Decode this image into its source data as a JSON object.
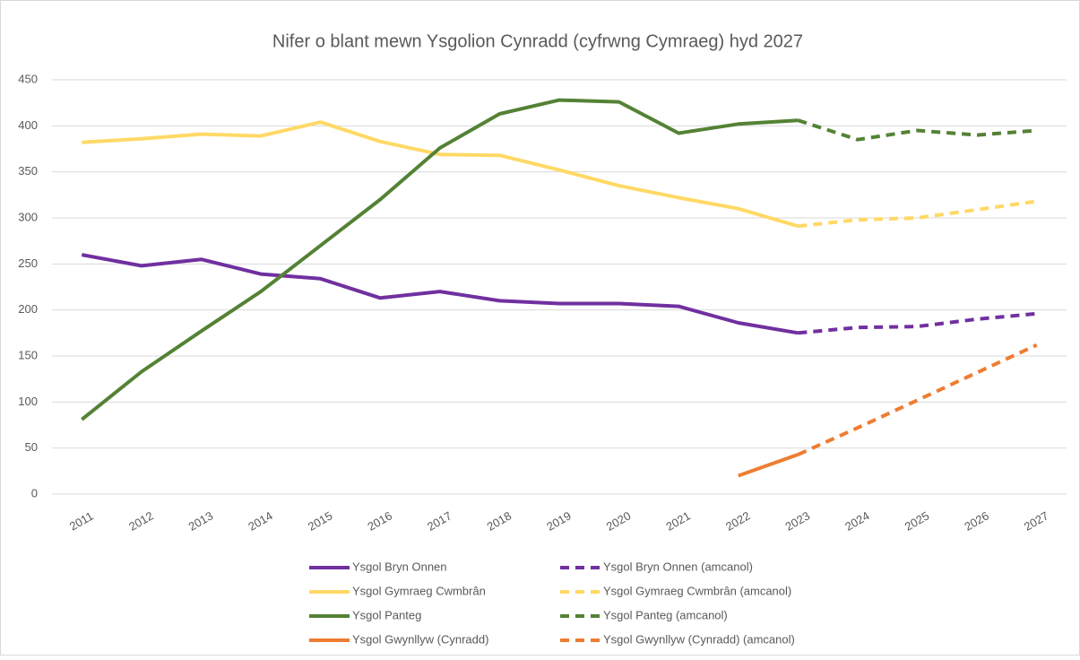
{
  "chart_data": {
    "type": "line",
    "title": "Nifer o blant mewn Ysgolion Cynradd (cyfrwng Cymraeg) hyd 2027",
    "categories": [
      "2011",
      "2012",
      "2013",
      "2014",
      "2015",
      "2016",
      "2017",
      "2018",
      "2019",
      "2020",
      "2021",
      "2022",
      "2023",
      "2024",
      "2025",
      "2026",
      "2027"
    ],
    "series": [
      {
        "name": "Ysgol Bryn Onnen",
        "color": "#7030a0",
        "dashed": false,
        "values": [
          260,
          248,
          255,
          239,
          234,
          213,
          220,
          210,
          207,
          207,
          204,
          186,
          175,
          null,
          null,
          null,
          null
        ]
      },
      {
        "name": "Ysgol Bryn Onnen (amcanol)",
        "color": "#7030a0",
        "dashed": true,
        "values": [
          null,
          null,
          null,
          null,
          null,
          null,
          null,
          null,
          null,
          null,
          null,
          null,
          175,
          181,
          182,
          190,
          196
        ]
      },
      {
        "name": "Ysgol Gymraeg Cwmbrân",
        "color": "#ffd966",
        "dashed": false,
        "values": [
          382,
          386,
          391,
          389,
          404,
          383,
          369,
          368,
          352,
          335,
          322,
          310,
          291,
          null,
          null,
          null,
          null
        ]
      },
      {
        "name": "Ysgol Gymraeg Cwmbrân (amcanol)",
        "color": "#ffd966",
        "dashed": true,
        "values": [
          null,
          null,
          null,
          null,
          null,
          null,
          null,
          null,
          null,
          null,
          null,
          null,
          291,
          298,
          300,
          309,
          318
        ]
      },
      {
        "name": "Ysgol Panteg",
        "color": "#548235",
        "dashed": false,
        "values": [
          81,
          133,
          177,
          220,
          270,
          320,
          376,
          413,
          428,
          426,
          392,
          402,
          406,
          null,
          null,
          null,
          null
        ]
      },
      {
        "name": "Ysgol Panteg (amcanol)",
        "color": "#548235",
        "dashed": true,
        "values": [
          null,
          null,
          null,
          null,
          null,
          null,
          null,
          null,
          null,
          null,
          null,
          null,
          406,
          385,
          395,
          390,
          395
        ]
      },
      {
        "name": "Ysgol Gwynllyw (Cynradd)",
        "color": "#ed7d31",
        "dashed": false,
        "values": [
          null,
          null,
          null,
          null,
          null,
          null,
          null,
          null,
          null,
          null,
          null,
          20,
          43,
          null,
          null,
          null,
          null
        ]
      },
      {
        "name": "Ysgol Gwynllyw (Cynradd) (amcanol)",
        "color": "#ed7d31",
        "dashed": true,
        "values": [
          null,
          null,
          null,
          null,
          null,
          null,
          null,
          null,
          null,
          null,
          null,
          null,
          43,
          72,
          102,
          132,
          162
        ]
      }
    ],
    "ylim": [
      0,
      450
    ],
    "yticks": [
      0,
      50,
      100,
      150,
      200,
      250,
      300,
      350,
      400,
      450
    ],
    "grid": true
  }
}
